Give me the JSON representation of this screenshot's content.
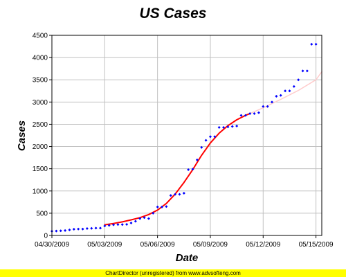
{
  "chart_data": {
    "type": "scatter",
    "title": "US Cases",
    "xlabel": "Date",
    "ylabel": "Cases",
    "x_ticks": [
      "04/30/2009",
      "05/03/2009",
      "05/06/2009",
      "05/09/2009",
      "05/12/2009",
      "05/15/2009"
    ],
    "x_range": [
      0,
      15.33
    ],
    "ylim": [
      0,
      4500
    ],
    "y_ticks": [
      0,
      500,
      1000,
      1500,
      2000,
      2500,
      3000,
      3500,
      4000,
      4500
    ],
    "grid": true,
    "colors": {
      "points": "#0000ff",
      "fit_line": "#ff0000",
      "projection": "#ffcccc",
      "frame": "#000000",
      "grid": "#c0c0c0",
      "footer_bg": "#ffff00"
    },
    "series": [
      {
        "kind": "points",
        "x": [
          0,
          0.25,
          0.5,
          0.75,
          1,
          1.25,
          1.5,
          1.75,
          2,
          2.25,
          2.5,
          2.75,
          3,
          3.25,
          3.5,
          3.75,
          4,
          4.25,
          4.5,
          4.75,
          5,
          5.25,
          5.5,
          5.75,
          6,
          6.25,
          6.5,
          6.75,
          7,
          7.25,
          7.5,
          7.75,
          8,
          8.25,
          8.5,
          8.75,
          9,
          9.25,
          9.5,
          9.75,
          10,
          10.25,
          10.5,
          10.75,
          11,
          11.25,
          11.5,
          11.75,
          12,
          12.25,
          12.5,
          12.75,
          13,
          13.25,
          13.5,
          13.75,
          14,
          14.25,
          14.5,
          14.75,
          15
        ],
        "y": [
          95,
          100,
          105,
          110,
          125,
          140,
          145,
          145,
          155,
          160,
          165,
          165,
          215,
          225,
          240,
          245,
          245,
          250,
          280,
          320,
          380,
          400,
          380,
          500,
          640,
          640,
          650,
          900,
          925,
          925,
          950,
          1480,
          1490,
          1700,
          1980,
          2140,
          2220,
          2220,
          2430,
          2430,
          2440,
          2450,
          2460,
          2700,
          2700,
          2740,
          2740,
          2760,
          2900,
          2900,
          3000,
          3130,
          3150,
          3250,
          3250,
          3350,
          3500,
          3700,
          3700,
          4300,
          4300
        ]
      },
      {
        "kind": "fit_line",
        "x": [
          3,
          3.5,
          4,
          4.5,
          5,
          5.5,
          6,
          6.5,
          7,
          7.5,
          8,
          8.5,
          9,
          9.5,
          10,
          10.5,
          11,
          11.25
        ],
        "y": [
          240,
          270,
          305,
          350,
          400,
          470,
          570,
          720,
          930,
          1190,
          1480,
          1800,
          2080,
          2300,
          2470,
          2600,
          2700,
          2740
        ]
      },
      {
        "kind": "projection",
        "x": [
          11.25,
          12,
          13,
          14,
          15,
          15.33
        ],
        "y": [
          2740,
          2870,
          3060,
          3260,
          3500,
          3680
        ]
      }
    ]
  },
  "footer": {
    "text": "ChartDirector (unregistered) from www.advsofteng.com"
  }
}
